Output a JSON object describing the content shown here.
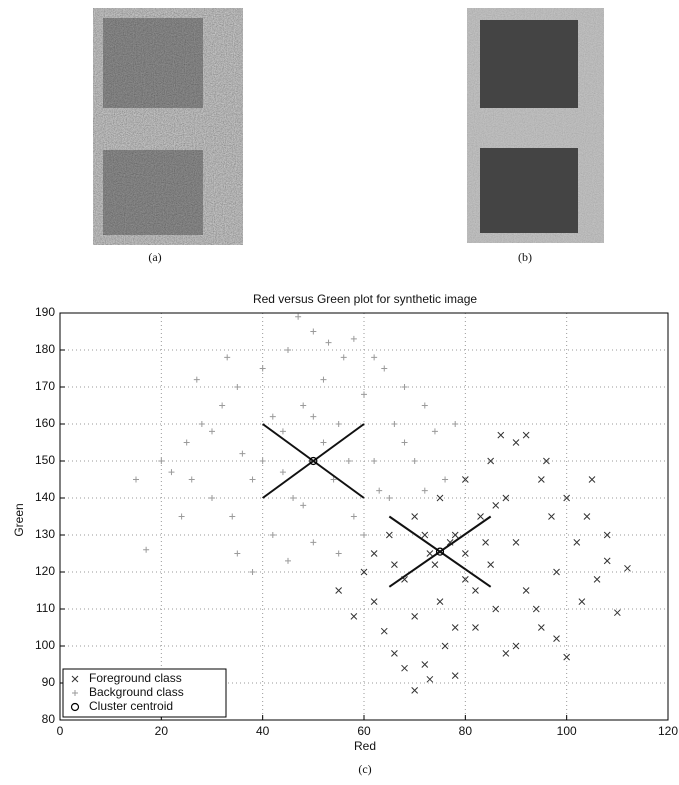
{
  "figure": {
    "labels": [
      "(a)",
      "(b)",
      "(c)"
    ]
  },
  "chart_data": {
    "type": "scatter",
    "title": "Red versus Green plot for synthetic image",
    "x_label": "Red",
    "y_label": "Green",
    "xlim": [
      0,
      120
    ],
    "ylim": [
      80,
      190
    ],
    "xticks": [
      0,
      20,
      40,
      60,
      80,
      100,
      120
    ],
    "yticks": [
      80,
      90,
      100,
      110,
      120,
      130,
      140,
      150,
      160,
      170,
      180,
      190
    ],
    "grid": true,
    "legend": "lower left",
    "series": [
      {
        "name": "Foreground class",
        "marker": "x",
        "color": "#333333",
        "x": [
          55,
          58,
          60,
          62,
          64,
          65,
          66,
          68,
          70,
          70,
          72,
          73,
          75,
          75,
          76,
          78,
          78,
          80,
          80,
          82,
          83,
          85,
          85,
          86,
          88,
          88,
          90,
          90,
          92,
          95,
          95,
          97,
          98,
          100,
          100,
          102,
          103,
          105,
          106,
          108,
          110,
          112,
          108,
          104,
          96,
          92,
          87,
          70,
          73,
          68,
          77,
          80,
          74,
          72,
          84,
          82,
          86,
          78,
          66,
          62,
          90,
          94,
          98
        ],
        "y": [
          115,
          108,
          120,
          112,
          104,
          130,
          98,
          118,
          135,
          108,
          95,
          125,
          140,
          112,
          100,
          130,
          92,
          145,
          118,
          105,
          135,
          150,
          122,
          110,
          140,
          98,
          128,
          155,
          115,
          145,
          105,
          135,
          120,
          140,
          97,
          128,
          112,
          145,
          118,
          130,
          109,
          121,
          123,
          135,
          150,
          157,
          157,
          88,
          91,
          94,
          128,
          125,
          122,
          130,
          128,
          115,
          138,
          105,
          122,
          125,
          100,
          110,
          102
        ]
      },
      {
        "name": "Background class",
        "marker": "+",
        "color": "#9a9a9a",
        "x": [
          20,
          22,
          25,
          28,
          30,
          32,
          34,
          35,
          38,
          40,
          42,
          44,
          45,
          46,
          48,
          50,
          50,
          52,
          54,
          55,
          56,
          58,
          60,
          62,
          64,
          65,
          66,
          68,
          70,
          72,
          74,
          76,
          78,
          35,
          38,
          45,
          55,
          15,
          17,
          24,
          27,
          33,
          47,
          53,
          58,
          62,
          40,
          44,
          52,
          48,
          57,
          63,
          30,
          26,
          36,
          68,
          72,
          60,
          42,
          50
        ],
        "y": [
          150,
          147,
          155,
          160,
          140,
          165,
          135,
          170,
          145,
          175,
          130,
          158,
          180,
          140,
          165,
          185,
          128,
          172,
          145,
          160,
          178,
          135,
          168,
          150,
          175,
          140,
          160,
          170,
          150,
          165,
          158,
          145,
          160,
          125,
          120,
          123,
          125,
          145,
          126,
          135,
          172,
          178,
          189,
          182,
          183,
          178,
          150,
          147,
          155,
          138,
          150,
          142,
          158,
          145,
          152,
          155,
          142,
          130,
          162,
          162
        ]
      },
      {
        "name": "Cluster centroid",
        "marker": "o",
        "color": "#000000",
        "x": [
          50,
          75
        ],
        "y": [
          150,
          125.5
        ]
      }
    ],
    "cross_lines": [
      {
        "x": [
          40,
          60
        ],
        "y": [
          160,
          140
        ]
      },
      {
        "x": [
          40,
          60
        ],
        "y": [
          140,
          160
        ]
      },
      {
        "x": [
          65,
          85
        ],
        "y": [
          135,
          116
        ]
      },
      {
        "x": [
          65,
          85
        ],
        "y": [
          116,
          135
        ]
      }
    ]
  }
}
